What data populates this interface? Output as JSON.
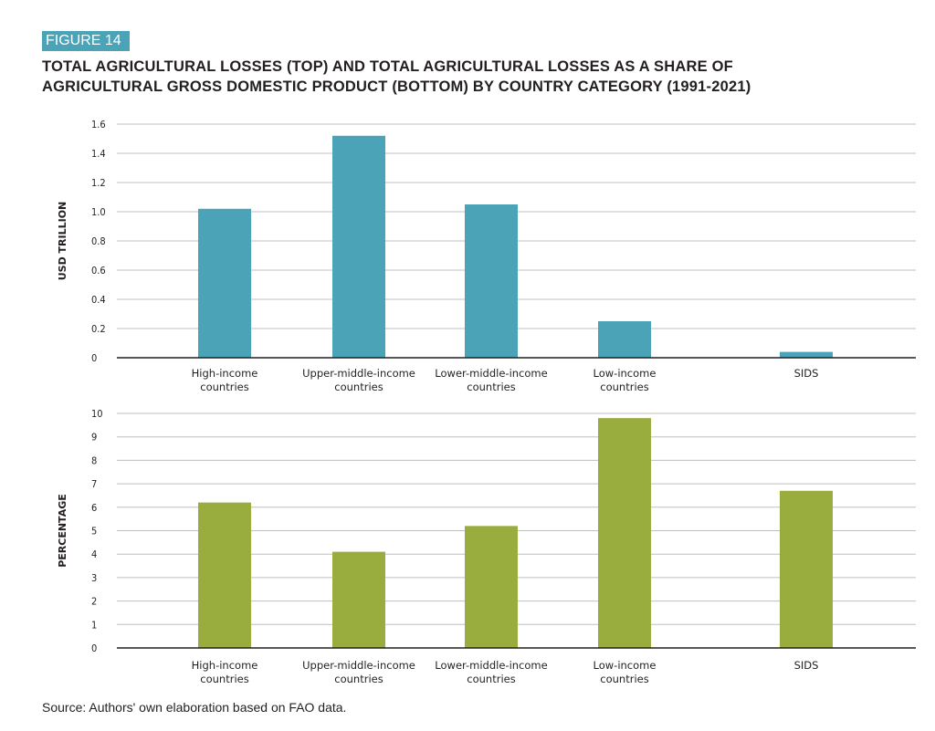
{
  "figure_label": "FIGURE 14",
  "title_line1": "TOTAL AGRICULTURAL LOSSES (TOP) AND TOTAL AGRICULTURAL LOSSES AS A SHARE OF",
  "title_line2": "AGRICULTURAL GROSS DOMESTIC PRODUCT (BOTTOM) BY COUNTRY CATEGORY (1991-2021)",
  "source": "Source: Authors' own elaboration based on FAO data.",
  "colors": {
    "tag_bg": "#4aa3b6",
    "top_bar": "#4aa3b6",
    "bottom_bar": "#99ad3e",
    "grid": "#bfbfbf",
    "axis": "#231f20"
  },
  "chart_data": [
    {
      "type": "bar",
      "title": "Total agricultural losses",
      "ylabel": "USD TRILLION",
      "xlabel": "",
      "categories": [
        [
          "High-income",
          "countries"
        ],
        [
          "Upper-middle-income",
          "countries"
        ],
        [
          "Lower-middle-income",
          "countries"
        ],
        [
          "Low-income",
          "countries"
        ],
        [
          "SIDS"
        ]
      ],
      "values": [
        1.02,
        1.52,
        1.05,
        0.25,
        0.04
      ],
      "ylim": [
        0,
        1.6
      ],
      "yticks": [
        "0",
        "0.2",
        "0.4",
        "0.6",
        "0.8",
        "1.0",
        "1.2",
        "1.4",
        "1.6"
      ],
      "grid": true
    },
    {
      "type": "bar",
      "title": "Total agricultural losses as a share of agricultural GDP",
      "ylabel": "PERCENTAGE",
      "xlabel": "",
      "categories": [
        [
          "High-income",
          "countries"
        ],
        [
          "Upper-middle-income",
          "countries"
        ],
        [
          "Lower-middle-income",
          "countries"
        ],
        [
          "Low-income",
          "countries"
        ],
        [
          "SIDS"
        ]
      ],
      "values": [
        6.2,
        4.1,
        5.2,
        9.8,
        6.7
      ],
      "ylim": [
        0,
        10
      ],
      "yticks": [
        "0",
        "1",
        "2",
        "3",
        "4",
        "5",
        "6",
        "7",
        "8",
        "9",
        "10"
      ],
      "grid": true
    }
  ]
}
